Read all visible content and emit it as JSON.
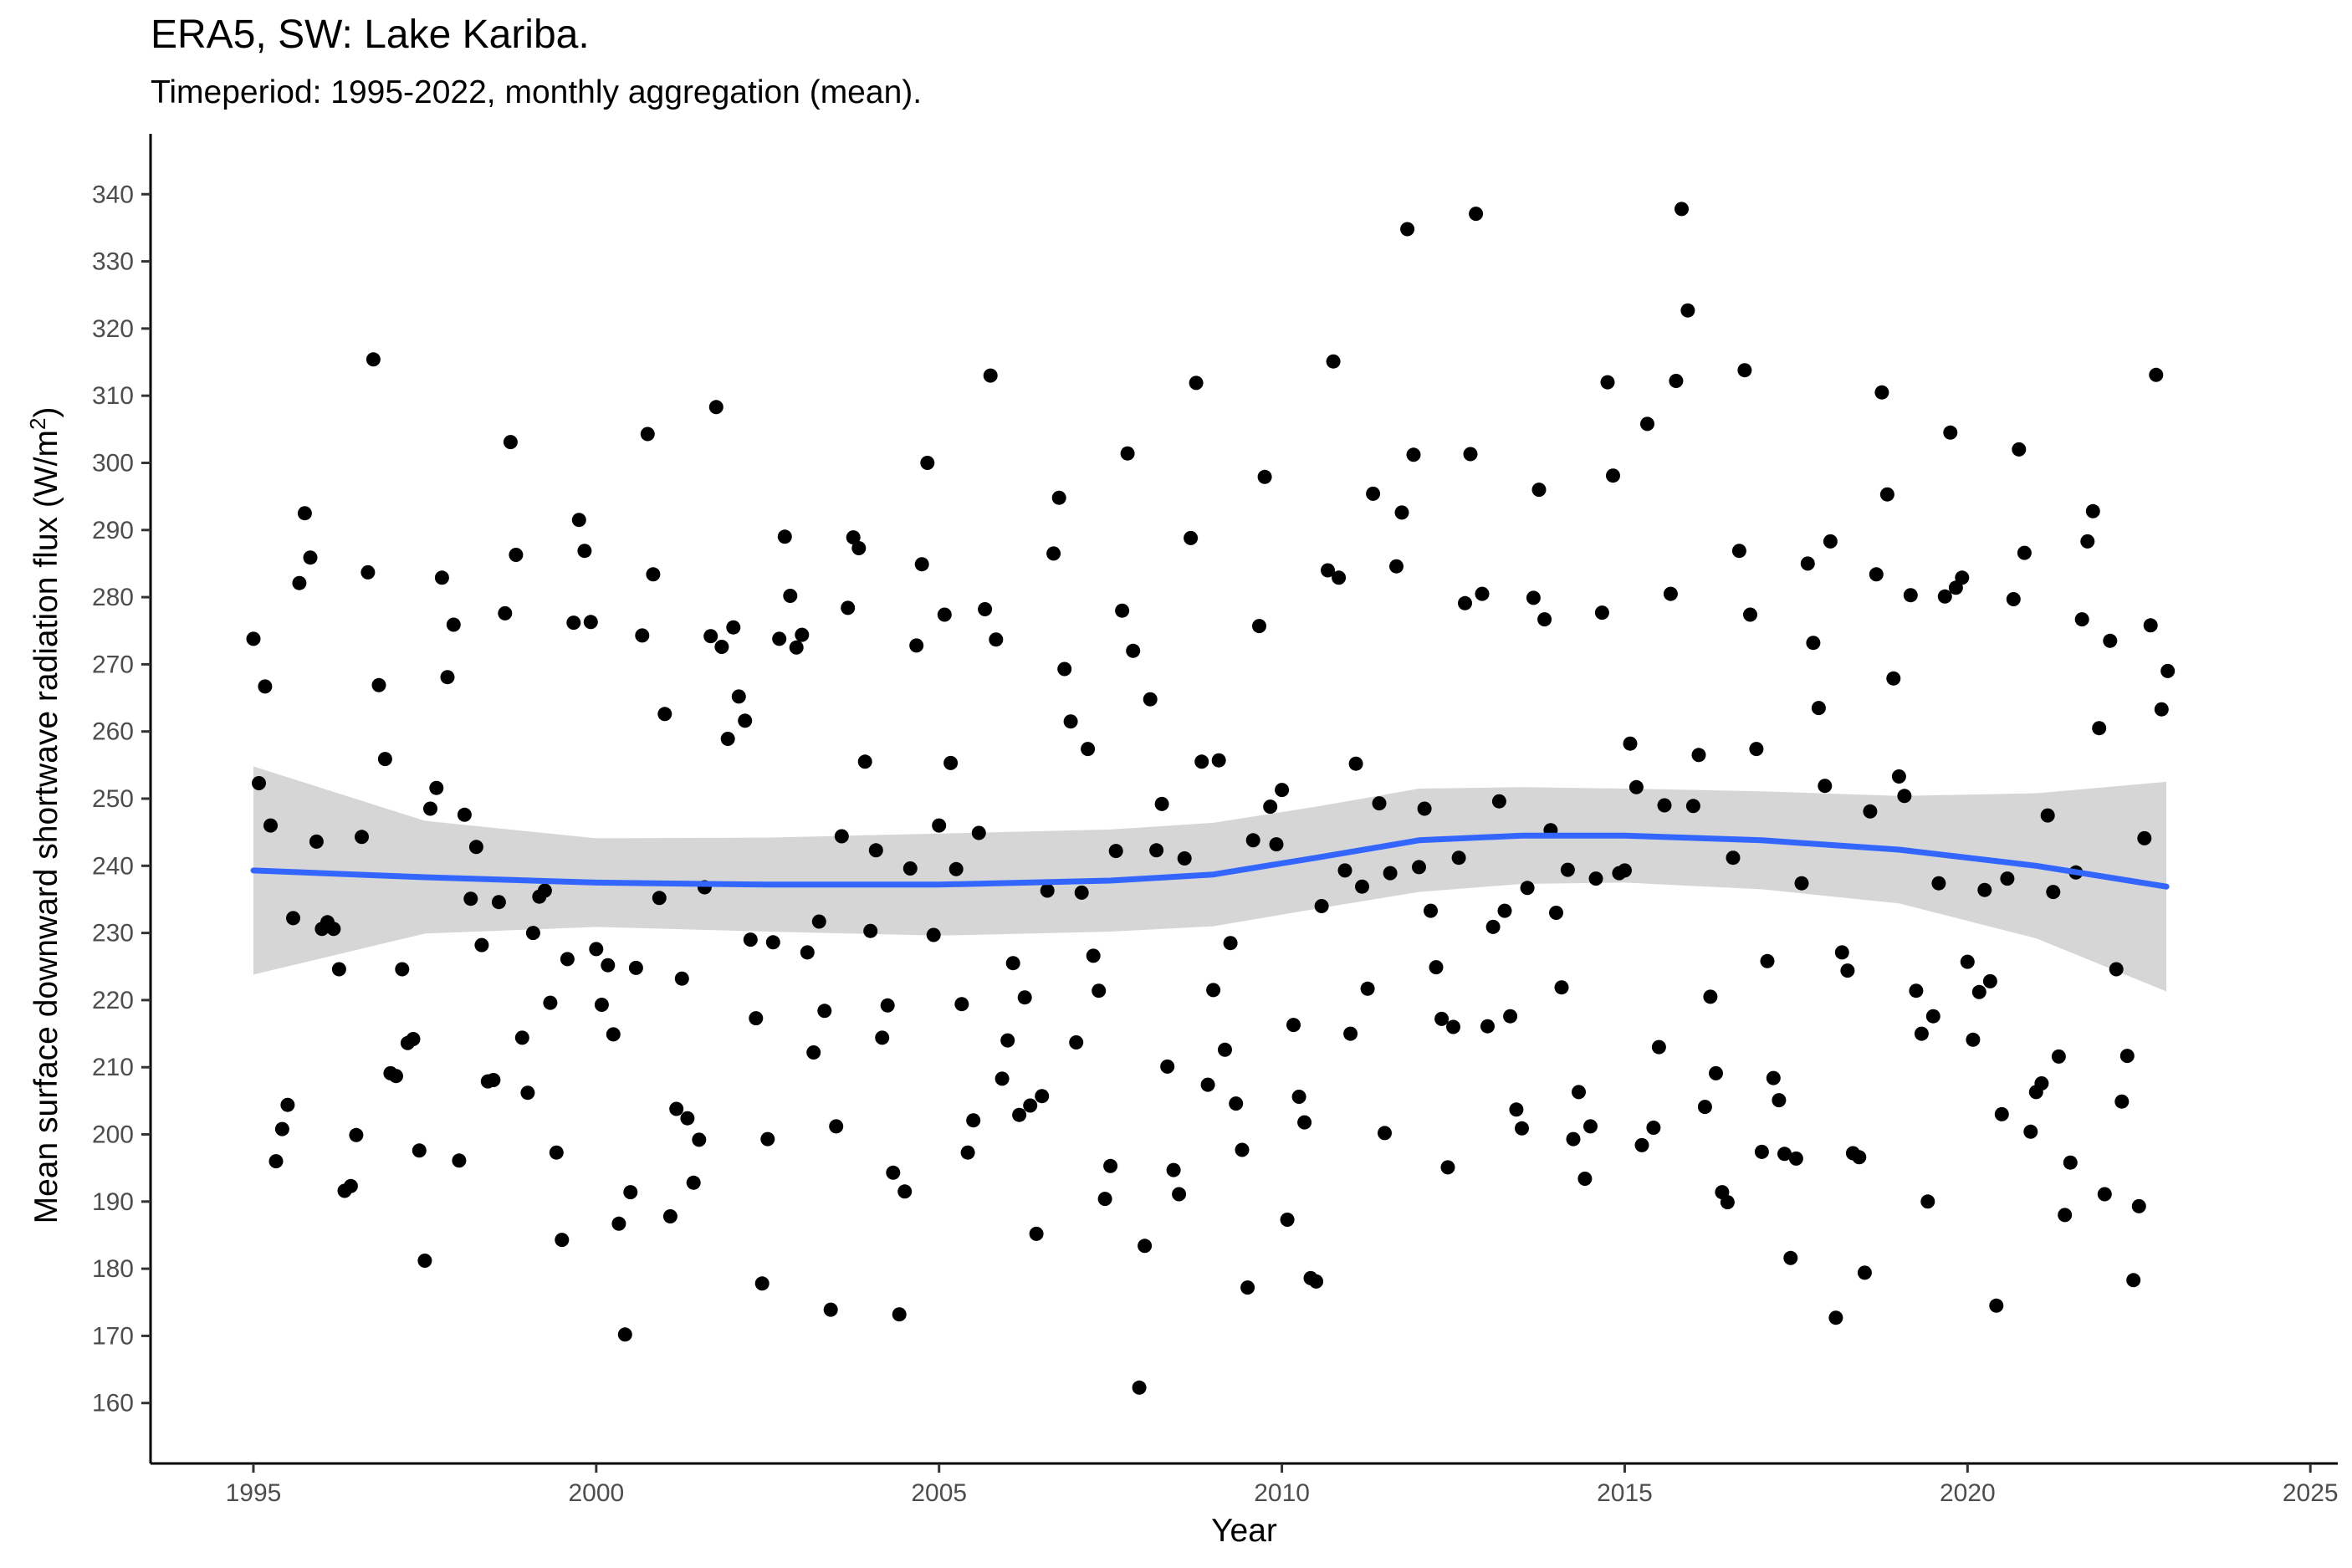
{
  "title": "ERA5, SW: Lake Kariba.",
  "subtitle": "Timeperiod: 1995-2022, monthly aggregation (mean).",
  "chart_data": {
    "type": "scatter",
    "title": "ERA5, SW: Lake Kariba.",
    "subtitle": "Timeperiod: 1995-2022, monthly aggregation (mean).",
    "xlabel": "Year",
    "ylabel_main": "Mean surface downward shortwave radiation flux (W/m",
    "ylabel_sup": "2",
    "ylabel_end": ")",
    "xlim": [
      1993.5,
      2025.4
    ],
    "ylim": [
      151,
      349
    ],
    "x_ticks": [
      1995,
      2000,
      2005,
      2010,
      2015,
      2020,
      2025
    ],
    "y_ticks": [
      160,
      170,
      180,
      190,
      200,
      210,
      220,
      230,
      240,
      250,
      260,
      270,
      280,
      290,
      300,
      310,
      320,
      330,
      340
    ],
    "grid": false,
    "legend": "none",
    "colors": {
      "points": "#000000",
      "smooth_line": "#3366ff",
      "ribbon": "#cccccc",
      "axis": "#000000",
      "tick_labels": "#4d4d4d"
    },
    "points": [
      [
        1995.0,
        273.8
      ],
      [
        1995.08,
        252.3
      ],
      [
        1995.17,
        266.7
      ],
      [
        1995.25,
        246
      ],
      [
        1995.33,
        196
      ],
      [
        1995.42,
        200.8
      ],
      [
        1995.5,
        204.4
      ],
      [
        1995.58,
        232.2
      ],
      [
        1995.67,
        282.1
      ],
      [
        1995.75,
        292.5
      ],
      [
        1995.83,
        285.9
      ],
      [
        1995.92,
        243.6
      ],
      [
        1996.0,
        230.6
      ],
      [
        1996.08,
        231.6
      ],
      [
        1996.17,
        230.6
      ],
      [
        1996.25,
        224.6
      ],
      [
        1996.33,
        191.6
      ],
      [
        1996.42,
        192.3
      ],
      [
        1996.5,
        199.9
      ],
      [
        1996.58,
        244.3
      ],
      [
        1996.67,
        283.7
      ],
      [
        1996.75,
        315.4
      ],
      [
        1996.83,
        266.9
      ],
      [
        1996.92,
        255.9
      ],
      [
        1997.0,
        209.1
      ],
      [
        1997.08,
        208.7
      ],
      [
        1997.17,
        224.6
      ],
      [
        1997.25,
        213.6
      ],
      [
        1997.33,
        214.2
      ],
      [
        1997.42,
        197.6
      ],
      [
        1997.5,
        181.2
      ],
      [
        1997.58,
        248.5
      ],
      [
        1997.67,
        251.6
      ],
      [
        1997.75,
        282.9
      ],
      [
        1997.83,
        268.1
      ],
      [
        1997.92,
        275.9
      ],
      [
        1998.0,
        196.1
      ],
      [
        1998.08,
        247.6
      ],
      [
        1998.17,
        235.1
      ],
      [
        1998.25,
        242.8
      ],
      [
        1998.33,
        228.2
      ],
      [
        1998.42,
        207.9
      ],
      [
        1998.5,
        208.1
      ],
      [
        1998.58,
        234.6
      ],
      [
        1998.67,
        277.6
      ],
      [
        1998.75,
        303.1
      ],
      [
        1998.83,
        286.3
      ],
      [
        1998.92,
        214.4
      ],
      [
        1999.0,
        206.2
      ],
      [
        1999.08,
        230
      ],
      [
        1999.17,
        235.4
      ],
      [
        1999.25,
        236.3
      ],
      [
        1999.33,
        219.6
      ],
      [
        1999.42,
        197.3
      ],
      [
        1999.5,
        184.3
      ],
      [
        1999.58,
        226.1
      ],
      [
        1999.67,
        276.2
      ],
      [
        1999.75,
        291.5
      ],
      [
        1999.83,
        286.9
      ],
      [
        1999.92,
        276.3
      ],
      [
        2000.0,
        227.6
      ],
      [
        2000.08,
        219.3
      ],
      [
        2000.17,
        225.2
      ],
      [
        2000.25,
        214.9
      ],
      [
        2000.33,
        186.7
      ],
      [
        2000.42,
        170.2
      ],
      [
        2000.5,
        191.4
      ],
      [
        2000.58,
        224.8
      ],
      [
        2000.67,
        274.3
      ],
      [
        2000.75,
        304.3
      ],
      [
        2000.83,
        283.4
      ],
      [
        2000.92,
        235.2
      ],
      [
        2001.0,
        262.6
      ],
      [
        2001.08,
        187.8
      ],
      [
        2001.17,
        203.8
      ],
      [
        2001.25,
        223.2
      ],
      [
        2001.33,
        202.4
      ],
      [
        2001.42,
        192.8
      ],
      [
        2001.5,
        199.2
      ],
      [
        2001.58,
        236.8
      ],
      [
        2001.67,
        274.2
      ],
      [
        2001.75,
        308.3
      ],
      [
        2001.83,
        272.6
      ],
      [
        2001.92,
        258.9
      ],
      [
        2002.0,
        275.5
      ],
      [
        2002.08,
        265.2
      ],
      [
        2002.17,
        261.6
      ],
      [
        2002.25,
        229
      ],
      [
        2002.33,
        217.3
      ],
      [
        2002.42,
        177.8
      ],
      [
        2002.5,
        199.3
      ],
      [
        2002.58,
        228.6
      ],
      [
        2002.67,
        273.8
      ],
      [
        2002.75,
        289
      ],
      [
        2002.83,
        280.2
      ],
      [
        2002.92,
        272.5
      ],
      [
        2003.0,
        274.4
      ],
      [
        2003.08,
        227.1
      ],
      [
        2003.17,
        212.2
      ],
      [
        2003.25,
        231.7
      ],
      [
        2003.33,
        218.4
      ],
      [
        2003.42,
        173.9
      ],
      [
        2003.5,
        201.2
      ],
      [
        2003.58,
        244.4
      ],
      [
        2003.67,
        278.4
      ],
      [
        2003.75,
        288.9
      ],
      [
        2003.83,
        287.3
      ],
      [
        2003.92,
        255.5
      ],
      [
        2004.0,
        230.3
      ],
      [
        2004.08,
        242.3
      ],
      [
        2004.17,
        214.4
      ],
      [
        2004.25,
        219.2
      ],
      [
        2004.33,
        194.3
      ],
      [
        2004.42,
        173.2
      ],
      [
        2004.5,
        191.5
      ],
      [
        2004.58,
        239.6
      ],
      [
        2004.67,
        272.8
      ],
      [
        2004.75,
        284.9
      ],
      [
        2004.83,
        300
      ],
      [
        2004.92,
        229.7
      ],
      [
        2005.0,
        246
      ],
      [
        2005.08,
        277.4
      ],
      [
        2005.17,
        255.3
      ],
      [
        2005.25,
        239.5
      ],
      [
        2005.33,
        219.4
      ],
      [
        2005.42,
        197.3
      ],
      [
        2005.5,
        202.1
      ],
      [
        2005.58,
        244.9
      ],
      [
        2005.67,
        278.2
      ],
      [
        2005.75,
        313
      ],
      [
        2005.83,
        273.7
      ],
      [
        2005.92,
        208.3
      ],
      [
        2006.0,
        214
      ],
      [
        2006.08,
        225.5
      ],
      [
        2006.17,
        202.9
      ],
      [
        2006.25,
        220.4
      ],
      [
        2006.33,
        204.3
      ],
      [
        2006.42,
        185.2
      ],
      [
        2006.5,
        205.7
      ],
      [
        2006.58,
        236.3
      ],
      [
        2006.67,
        286.5
      ],
      [
        2006.75,
        294.8
      ],
      [
        2006.83,
        269.3
      ],
      [
        2006.92,
        261.5
      ],
      [
        2007.0,
        213.7
      ],
      [
        2007.08,
        236
      ],
      [
        2007.17,
        257.4
      ],
      [
        2007.25,
        226.6
      ],
      [
        2007.33,
        221.4
      ],
      [
        2007.42,
        190.4
      ],
      [
        2007.5,
        195.3
      ],
      [
        2007.58,
        242.2
      ],
      [
        2007.67,
        278
      ],
      [
        2007.75,
        301.4
      ],
      [
        2007.83,
        272
      ],
      [
        2007.92,
        162.3
      ],
      [
        2008.0,
        183.4
      ],
      [
        2008.08,
        264.8
      ],
      [
        2008.17,
        242.3
      ],
      [
        2008.25,
        249.2
      ],
      [
        2008.33,
        210.1
      ],
      [
        2008.42,
        194.7
      ],
      [
        2008.5,
        191.1
      ],
      [
        2008.58,
        241.1
      ],
      [
        2008.67,
        288.8
      ],
      [
        2008.75,
        311.9
      ],
      [
        2008.83,
        255.5
      ],
      [
        2008.92,
        207.4
      ],
      [
        2009.0,
        221.5
      ],
      [
        2009.08,
        255.7
      ],
      [
        2009.17,
        212.6
      ],
      [
        2009.25,
        228.5
      ],
      [
        2009.33,
        204.6
      ],
      [
        2009.42,
        197.7
      ],
      [
        2009.5,
        177.2
      ],
      [
        2009.58,
        243.8
      ],
      [
        2009.67,
        275.7
      ],
      [
        2009.75,
        297.9
      ],
      [
        2009.83,
        248.8
      ],
      [
        2009.92,
        243.2
      ],
      [
        2010.0,
        251.3
      ],
      [
        2010.08,
        187.3
      ],
      [
        2010.17,
        216.3
      ],
      [
        2010.25,
        205.6
      ],
      [
        2010.33,
        201.8
      ],
      [
        2010.42,
        178.6
      ],
      [
        2010.5,
        178.1
      ],
      [
        2010.58,
        234
      ],
      [
        2010.67,
        284
      ],
      [
        2010.75,
        315.1
      ],
      [
        2010.83,
        282.9
      ],
      [
        2010.92,
        239.3
      ],
      [
        2011.0,
        215
      ],
      [
        2011.08,
        255.2
      ],
      [
        2011.17,
        236.9
      ],
      [
        2011.25,
        221.7
      ],
      [
        2011.33,
        295.4
      ],
      [
        2011.42,
        249.3
      ],
      [
        2011.5,
        200.2
      ],
      [
        2011.58,
        238.9
      ],
      [
        2011.67,
        284.6
      ],
      [
        2011.75,
        292.6
      ],
      [
        2011.83,
        334.8
      ],
      [
        2011.92,
        301.2
      ],
      [
        2012.0,
        239.8
      ],
      [
        2012.08,
        248.5
      ],
      [
        2012.17,
        233.3
      ],
      [
        2012.25,
        224.9
      ],
      [
        2012.33,
        217.2
      ],
      [
        2012.42,
        195.1
      ],
      [
        2012.5,
        216
      ],
      [
        2012.58,
        241.2
      ],
      [
        2012.67,
        279.1
      ],
      [
        2012.75,
        301.3
      ],
      [
        2012.83,
        337.1
      ],
      [
        2012.92,
        280.5
      ],
      [
        2013.0,
        216.1
      ],
      [
        2013.08,
        230.9
      ],
      [
        2013.17,
        249.6
      ],
      [
        2013.25,
        233.3
      ],
      [
        2013.33,
        217.6
      ],
      [
        2013.42,
        203.7
      ],
      [
        2013.5,
        200.9
      ],
      [
        2013.58,
        236.7
      ],
      [
        2013.67,
        279.9
      ],
      [
        2013.75,
        296
      ],
      [
        2013.83,
        276.7
      ],
      [
        2013.92,
        245.3
      ],
      [
        2014.0,
        233
      ],
      [
        2014.08,
        221.9
      ],
      [
        2014.17,
        239.4
      ],
      [
        2014.25,
        199.3
      ],
      [
        2014.33,
        206.3
      ],
      [
        2014.42,
        193.4
      ],
      [
        2014.5,
        201.2
      ],
      [
        2014.58,
        238.1
      ],
      [
        2014.67,
        277.7
      ],
      [
        2014.75,
        312
      ],
      [
        2014.83,
        298.1
      ],
      [
        2014.92,
        238.9
      ],
      [
        2015.0,
        239.3
      ],
      [
        2015.08,
        258.2
      ],
      [
        2015.17,
        251.7
      ],
      [
        2015.25,
        198.4
      ],
      [
        2015.33,
        305.8
      ],
      [
        2015.42,
        201
      ],
      [
        2015.5,
        213
      ],
      [
        2015.58,
        249
      ],
      [
        2015.67,
        280.5
      ],
      [
        2015.75,
        312.2
      ],
      [
        2015.83,
        337.8
      ],
      [
        2015.92,
        322.7
      ],
      [
        2016.0,
        248.9
      ],
      [
        2016.08,
        256.5
      ],
      [
        2016.17,
        204.1
      ],
      [
        2016.25,
        220.5
      ],
      [
        2016.33,
        209.1
      ],
      [
        2016.42,
        191.4
      ],
      [
        2016.5,
        189.9
      ],
      [
        2016.58,
        241.2
      ],
      [
        2016.67,
        286.9
      ],
      [
        2016.75,
        313.8
      ],
      [
        2016.83,
        277.4
      ],
      [
        2016.92,
        257.4
      ],
      [
        2017.0,
        197.4
      ],
      [
        2017.08,
        225.8
      ],
      [
        2017.17,
        208.4
      ],
      [
        2017.25,
        205.1
      ],
      [
        2017.33,
        197.1
      ],
      [
        2017.42,
        181.6
      ],
      [
        2017.5,
        196.4
      ],
      [
        2017.58,
        237.4
      ],
      [
        2017.67,
        285
      ],
      [
        2017.75,
        273.2
      ],
      [
        2017.83,
        263.5
      ],
      [
        2017.92,
        251.9
      ],
      [
        2018.0,
        288.3
      ],
      [
        2018.08,
        172.7
      ],
      [
        2018.17,
        227.1
      ],
      [
        2018.25,
        224.4
      ],
      [
        2018.33,
        197.2
      ],
      [
        2018.42,
        196.6
      ],
      [
        2018.5,
        179.4
      ],
      [
        2018.58,
        248.1
      ],
      [
        2018.67,
        283.4
      ],
      [
        2018.75,
        310.5
      ],
      [
        2018.83,
        295.3
      ],
      [
        2018.92,
        267.9
      ],
      [
        2019.0,
        253.3
      ],
      [
        2019.08,
        250.4
      ],
      [
        2019.17,
        280.3
      ],
      [
        2019.25,
        221.4
      ],
      [
        2019.33,
        215
      ],
      [
        2019.42,
        190
      ],
      [
        2019.5,
        217.6
      ],
      [
        2019.58,
        237.4
      ],
      [
        2019.67,
        280.1
      ],
      [
        2019.75,
        304.5
      ],
      [
        2019.83,
        281.4
      ],
      [
        2019.92,
        282.9
      ],
      [
        2020.0,
        225.7
      ],
      [
        2020.08,
        214.1
      ],
      [
        2020.17,
        221.2
      ],
      [
        2020.25,
        236.4
      ],
      [
        2020.33,
        222.8
      ],
      [
        2020.42,
        174.5
      ],
      [
        2020.5,
        203
      ],
      [
        2020.58,
        238.1
      ],
      [
        2020.67,
        279.7
      ],
      [
        2020.75,
        302
      ],
      [
        2020.83,
        286.6
      ],
      [
        2020.92,
        200.4
      ],
      [
        2021.0,
        206.3
      ],
      [
        2021.08,
        207.6
      ],
      [
        2021.17,
        247.5
      ],
      [
        2021.25,
        236.1
      ],
      [
        2021.33,
        211.6
      ],
      [
        2021.42,
        188
      ],
      [
        2021.5,
        195.8
      ],
      [
        2021.58,
        239
      ],
      [
        2021.67,
        276.7
      ],
      [
        2021.75,
        288.3
      ],
      [
        2021.83,
        292.8
      ],
      [
        2021.92,
        260.5
      ],
      [
        2022.0,
        191.1
      ],
      [
        2022.08,
        273.5
      ],
      [
        2022.17,
        224.6
      ],
      [
        2022.25,
        204.9
      ],
      [
        2022.33,
        211.7
      ],
      [
        2022.42,
        178.3
      ],
      [
        2022.5,
        189.3
      ],
      [
        2022.58,
        244.1
      ],
      [
        2022.67,
        275.8
      ],
      [
        2022.75,
        313.1
      ],
      [
        2022.83,
        263.3
      ],
      [
        2022.92,
        269
      ]
    ],
    "smooth": {
      "x": [
        1995.0,
        1997.5,
        2000.0,
        2002.5,
        2005.0,
        2007.5,
        2009.0,
        2010.5,
        2012.0,
        2013.5,
        2015.0,
        2017.0,
        2019.0,
        2021.0,
        2022.9
      ],
      "y": [
        239.3,
        238.3,
        237.5,
        237.2,
        237.2,
        237.8,
        238.7,
        241.2,
        243.8,
        244.5,
        244.5,
        243.8,
        242.4,
        240.0,
        236.9
      ],
      "lower": [
        223.8,
        229.9,
        230.9,
        230.2,
        229.6,
        230.2,
        231.0,
        233.6,
        236.1,
        237.3,
        237.5,
        236.5,
        234.4,
        229.2,
        221.3
      ],
      "upper": [
        254.8,
        246.7,
        244.1,
        244.2,
        244.8,
        245.4,
        246.4,
        248.8,
        251.5,
        251.7,
        251.5,
        251.1,
        250.4,
        250.8,
        252.5
      ]
    }
  }
}
